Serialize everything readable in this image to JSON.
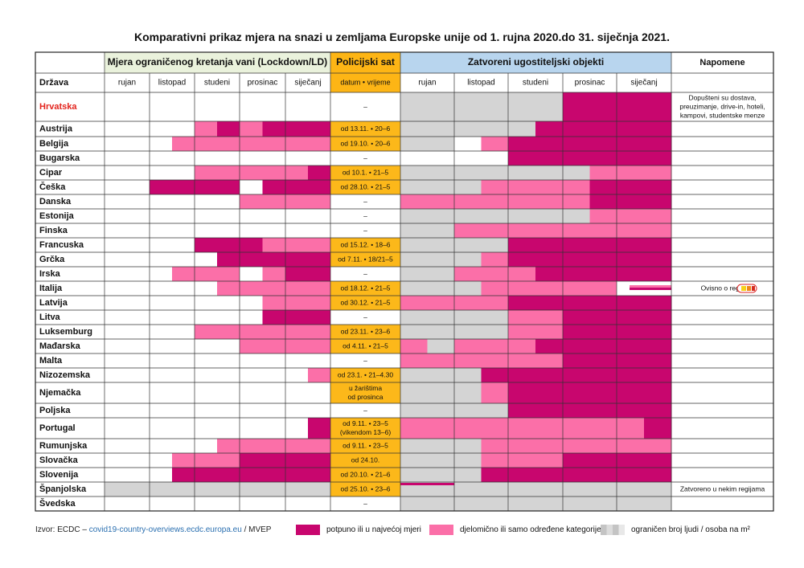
{
  "title": "Komparativni prikaz mjera na snazi u zemljama Europske  unije od 1. rujna 2020.do 31. siječnja  2021.",
  "headers": {
    "lockdown": "Mjera ograničenog kretanja vani (Lockdown/LD)",
    "curfew": "Policijski  sat",
    "hospitality": "Zatvoreni ugostiteljski objekti",
    "notes": "Napomene",
    "country": "Država",
    "curfew_sub": "datum • vrijeme",
    "months": [
      "rujan",
      "listopad",
      "studeni",
      "prosinac",
      "siječanj"
    ]
  },
  "colors": {
    "F": "#c8066e",
    "P": "#fb6fa8",
    "G": "#d4d4d4",
    "W": "#ffffff",
    "header_green": "#eaf2dc",
    "header_orange": "#fdb515",
    "header_blue": "#b8d5ee",
    "curfew_cell": "#fcb81a",
    "highlight_country": "#e3231c"
  },
  "chart_data": {
    "type": "table",
    "description_codes": {
      "F": "potpuno ili u najvećoj mjeri",
      "P": "djelomično ili samo određene kategorije",
      "G": "ograničen broj ljudi / osoba na m²",
      "W": "bez mjere"
    },
    "rows": [
      {
        "country": "Hrvatska",
        "highlight": true,
        "lockdown": [
          "WW",
          "WW",
          "WW",
          "WW",
          "WW"
        ],
        "curfew": [
          "–"
        ],
        "curfew_active": false,
        "hospitality": [
          "GG",
          "GG",
          "GG",
          "FF",
          "FF"
        ],
        "note": [
          "Dopušteni su dostava,",
          "preuzimanje, drive-in, hoteli,",
          "kampovi, studentske menze"
        ]
      },
      {
        "country": "Austrija",
        "lockdown": [
          "WW",
          "WW",
          "PF",
          "PF",
          "FF"
        ],
        "curfew": [
          "od 13.11. • 20–6"
        ],
        "curfew_active": true,
        "hospitality": [
          "GG",
          "GG",
          "GF",
          "FF",
          "FF"
        ],
        "note": []
      },
      {
        "country": "Belgija",
        "lockdown": [
          "WW",
          "WP",
          "PP",
          "PP",
          "PP"
        ],
        "curfew": [
          "od 19.10. • 20–6"
        ],
        "curfew_active": true,
        "hospitality": [
          "GG",
          "WP",
          "FF",
          "FF",
          "FF"
        ],
        "note": []
      },
      {
        "country": "Bugarska",
        "lockdown": [
          "WW",
          "WW",
          "WW",
          "WW",
          "WW"
        ],
        "curfew": [
          "–"
        ],
        "curfew_active": false,
        "hospitality": [
          "WW",
          "WW",
          "FF",
          "FF",
          "FF"
        ],
        "note": []
      },
      {
        "country": "Cipar",
        "lockdown": [
          "WW",
          "WW",
          "PP",
          "PP",
          "PF"
        ],
        "curfew": [
          "od 10.1. • 21–5"
        ],
        "curfew_active": true,
        "hospitality": [
          "GG",
          "GG",
          "GG",
          "GP",
          "PP"
        ],
        "note": []
      },
      {
        "country": "Češka",
        "lockdown": [
          "WW",
          "FF",
          "FF",
          "WF",
          "FF"
        ],
        "curfew": [
          "od 28.10. • 21–5"
        ],
        "curfew_active": true,
        "hospitality": [
          "GG",
          "GP",
          "PP",
          "PF",
          "FF"
        ],
        "note": []
      },
      {
        "country": "Danska",
        "lockdown": [
          "WW",
          "WW",
          "WW",
          "PP",
          "PP"
        ],
        "curfew": [
          "–"
        ],
        "curfew_active": false,
        "hospitality": [
          "PP",
          "PP",
          "PP",
          "PF",
          "FF"
        ],
        "note": []
      },
      {
        "country": "Estonija",
        "lockdown": [
          "WW",
          "WW",
          "WW",
          "WW",
          "WW"
        ],
        "curfew": [
          "–"
        ],
        "curfew_active": false,
        "hospitality": [
          "GG",
          "GG",
          "GG",
          "GP",
          "PP"
        ],
        "note": []
      },
      {
        "country": "Finska",
        "lockdown": [
          "WW",
          "WW",
          "WW",
          "WW",
          "WW"
        ],
        "curfew": [
          "–"
        ],
        "curfew_active": false,
        "hospitality": [
          "GG",
          "PP",
          "PP",
          "PP",
          "PP"
        ],
        "note": []
      },
      {
        "country": "Francuska",
        "lockdown": [
          "WW",
          "WW",
          "FF",
          "FP",
          "PP"
        ],
        "curfew": [
          "od 15.12. • 18–6"
        ],
        "curfew_active": true,
        "hospitality": [
          "GG",
          "GG",
          "FF",
          "FF",
          "FF"
        ],
        "note": []
      },
      {
        "country": "Grčka",
        "lockdown": [
          "WW",
          "WW",
          "WF",
          "FF",
          "FF"
        ],
        "curfew": [
          "od 7.11. • 18/21–5"
        ],
        "curfew_active": true,
        "hospitality": [
          "GG",
          "GP",
          "FF",
          "FF",
          "FF"
        ],
        "note": []
      },
      {
        "country": "Irska",
        "lockdown": [
          "WW",
          "WP",
          "PP",
          "WP",
          "FF"
        ],
        "curfew": [
          "–"
        ],
        "curfew_active": false,
        "hospitality": [
          "GG",
          "PP",
          "PF",
          "FF",
          "FF"
        ],
        "note": []
      },
      {
        "country": "Italija",
        "lockdown": [
          "WW",
          "WW",
          "WP",
          "PP",
          "PP"
        ],
        "curfew": [
          "od 18.12. • 21–5"
        ],
        "curfew_active": true,
        "hospitality": [
          "GG",
          "GP",
          "PP",
          "PP",
          "WW"
        ],
        "note": [
          "Ovisno o regiji"
        ]
      },
      {
        "country": "Latvija",
        "lockdown": [
          "WW",
          "WW",
          "WW",
          "WP",
          "PP"
        ],
        "curfew": [
          "od 30.12. • 21–5"
        ],
        "curfew_active": true,
        "hospitality": [
          "PP",
          "PP",
          "FF",
          "FF",
          "FF"
        ],
        "note": []
      },
      {
        "country": "Litva",
        "lockdown": [
          "WW",
          "WW",
          "WW",
          "WF",
          "FF"
        ],
        "curfew": [
          "–"
        ],
        "curfew_active": false,
        "hospitality": [
          "GG",
          "GG",
          "PP",
          "FF",
          "FF"
        ],
        "note": []
      },
      {
        "country": "Luksemburg",
        "lockdown": [
          "WW",
          "WW",
          "PP",
          "PP",
          "PP"
        ],
        "curfew": [
          "od 23.11. • 23–6"
        ],
        "curfew_active": true,
        "hospitality": [
          "GG",
          "GG",
          "PP",
          "FF",
          "FF"
        ],
        "note": []
      },
      {
        "country": "Mađarska",
        "lockdown": [
          "WW",
          "WW",
          "WW",
          "PP",
          "PP"
        ],
        "curfew": [
          "od 4.11. • 21–5"
        ],
        "curfew_active": true,
        "hospitality": [
          "PG",
          "PP",
          "PF",
          "FF",
          "FF"
        ],
        "note": []
      },
      {
        "country": "Malta",
        "lockdown": [
          "WW",
          "WW",
          "WW",
          "WW",
          "WW"
        ],
        "curfew": [
          "–"
        ],
        "curfew_active": false,
        "hospitality": [
          "PP",
          "PP",
          "PP",
          "FF",
          "FF"
        ],
        "note": []
      },
      {
        "country": "Nizozemska",
        "lockdown": [
          "WW",
          "WW",
          "WW",
          "WW",
          "WP"
        ],
        "curfew": [
          "od 23.1. • 21–4.30"
        ],
        "curfew_active": true,
        "hospitality": [
          "GG",
          "GF",
          "FF",
          "FF",
          "FF"
        ],
        "note": []
      },
      {
        "country": "Njemačka",
        "lockdown": [
          "WW",
          "WW",
          "WW",
          "WW",
          "WW"
        ],
        "curfew": [
          "u žarištima",
          "od prosinca"
        ],
        "curfew_active": true,
        "hospitality": [
          "GG",
          "GP",
          "FF",
          "FF",
          "FF"
        ],
        "note": []
      },
      {
        "country": "Poljska",
        "lockdown": [
          "WW",
          "WW",
          "WW",
          "WW",
          "WW"
        ],
        "curfew": [
          "–"
        ],
        "curfew_active": false,
        "hospitality": [
          "GG",
          "GG",
          "FF",
          "FF",
          "FF"
        ],
        "note": []
      },
      {
        "country": "Portugal",
        "lockdown": [
          "WW",
          "WW",
          "WW",
          "WW",
          "WF"
        ],
        "curfew": [
          "od 9.11. • 23–5",
          "(vikendom 13–6)"
        ],
        "curfew_active": true,
        "hospitality": [
          "PP",
          "PP",
          "PP",
          "PP",
          "PF"
        ],
        "note": []
      },
      {
        "country": "Rumunjska",
        "lockdown": [
          "WW",
          "WW",
          "WP",
          "PP",
          "PP"
        ],
        "curfew": [
          "od 9.11. • 23–5"
        ],
        "curfew_active": true,
        "hospitality": [
          "GG",
          "GP",
          "PP",
          "PP",
          "PP"
        ],
        "note": []
      },
      {
        "country": "Slovačka",
        "lockdown": [
          "WW",
          "WP",
          "PP",
          "FF",
          "FF"
        ],
        "curfew": [
          "od 24.10."
        ],
        "curfew_active": true,
        "hospitality": [
          "GG",
          "GP",
          "PP",
          "FF",
          "FF"
        ],
        "note": []
      },
      {
        "country": "Slovenija",
        "lockdown": [
          "WW",
          "WF",
          "FF",
          "FF",
          "FF"
        ],
        "curfew": [
          "od 20.10. • 21–6"
        ],
        "curfew_active": true,
        "hospitality": [
          "GG",
          "GF",
          "FF",
          "FF",
          "FF"
        ],
        "note": []
      },
      {
        "country": "Španjolska",
        "lockdown": [
          "GG",
          "GG",
          "GG",
          "GG",
          "GG"
        ],
        "curfew": [
          "od 25.10. • 23–6"
        ],
        "curfew_active": true,
        "hospitality": [
          "GG",
          "GG",
          "GG",
          "GG",
          "GG"
        ],
        "note": [
          "Zatvoreno u nekim regijama"
        ]
      },
      {
        "country": "Švedska",
        "lockdown": [
          "WW",
          "WW",
          "WW",
          "WW",
          "WW"
        ],
        "curfew": [
          "–"
        ],
        "curfew_active": false,
        "hospitality": [
          "GG",
          "GG",
          "GG",
          "GG",
          "GG"
        ],
        "note": []
      }
    ]
  },
  "legend": {
    "source_prefix": "Izvor: ECDC – ",
    "source_link": "covid19-country-overviews.ecdc.europa.eu",
    "source_suffix": " / MVEP",
    "full": "potpuno ili u najvećoj mjeri",
    "partial": "djelomično ili samo određene kategorije",
    "limited": "ograničen broj ljudi / osoba na m²"
  }
}
